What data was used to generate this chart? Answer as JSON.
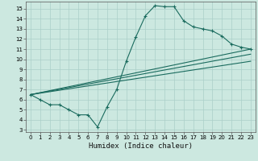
{
  "xlabel": "Humidex (Indice chaleur)",
  "background_color": "#cce8e0",
  "grid_color": "#aacfc8",
  "line_color": "#1a6b5e",
  "xlim": [
    -0.5,
    23.5
  ],
  "ylim": [
    2.8,
    15.7
  ],
  "xticks": [
    0,
    1,
    2,
    3,
    4,
    5,
    6,
    7,
    8,
    9,
    10,
    11,
    12,
    13,
    14,
    15,
    16,
    17,
    18,
    19,
    20,
    21,
    22,
    23
  ],
  "yticks": [
    3,
    4,
    5,
    6,
    7,
    8,
    9,
    10,
    11,
    12,
    13,
    14,
    15
  ],
  "line1_x": [
    0,
    1,
    2,
    3,
    4,
    5,
    6,
    7,
    8,
    9,
    10,
    11,
    12,
    13,
    14,
    15,
    16,
    17,
    18,
    19,
    20,
    21,
    22,
    23
  ],
  "line1_y": [
    6.5,
    6.0,
    5.5,
    5.5,
    5.0,
    4.5,
    4.5,
    3.3,
    5.3,
    7.0,
    9.8,
    12.2,
    14.3,
    15.3,
    15.2,
    15.2,
    13.8,
    13.2,
    13.0,
    12.8,
    12.3,
    11.5,
    11.2,
    11.0
  ],
  "line2_x": [
    0,
    23
  ],
  "line2_y": [
    6.5,
    11.0
  ],
  "line3_x": [
    0,
    23
  ],
  "line3_y": [
    6.5,
    10.5
  ],
  "line4_x": [
    0,
    23
  ],
  "line4_y": [
    6.5,
    9.8
  ],
  "tick_fontsize": 5.0,
  "xlabel_fontsize": 6.5,
  "lw": 0.8,
  "marker_size": 2.5
}
